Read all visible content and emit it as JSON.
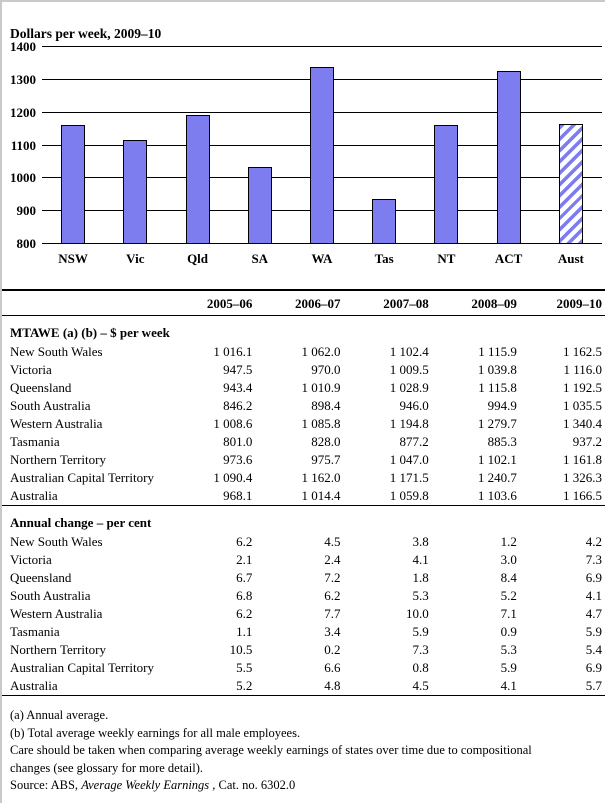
{
  "chart_data": {
    "type": "bar",
    "title": "Dollars per week, 2009–10",
    "categories": [
      "NSW",
      "Vic",
      "Qld",
      "SA",
      "WA",
      "Tas",
      "NT",
      "ACT",
      "Aust"
    ],
    "values": [
      1162.5,
      1116.0,
      1192.5,
      1035.5,
      1340.4,
      937.2,
      1161.8,
      1326.3,
      1166.5
    ],
    "xlabel": "",
    "ylabel": "Dollars per week",
    "ylim": [
      800,
      1400
    ],
    "ytick_step": 100,
    "grid": true,
    "legend": "none",
    "bar_color": "#7d7df0",
    "bar_border_color": "#000000",
    "hatched_category": "Aust",
    "hatch_style": "diagonal-forward-stripes-on-white"
  },
  "table": {
    "columns": [
      "2005–06",
      "2006–07",
      "2007–08",
      "2008–09",
      "2009–10"
    ],
    "sections": [
      {
        "header": "MTAWE (a) (b) – $ per week",
        "rows": [
          {
            "label": "New South Wales",
            "values": [
              "1 016.1",
              "1 062.0",
              "1 102.4",
              "1 115.9",
              "1 162.5"
            ]
          },
          {
            "label": "Victoria",
            "values": [
              "947.5",
              "970.0",
              "1 009.5",
              "1 039.8",
              "1 116.0"
            ]
          },
          {
            "label": "Queensland",
            "values": [
              "943.4",
              "1 010.9",
              "1 028.9",
              "1 115.8",
              "1 192.5"
            ]
          },
          {
            "label": "South Australia",
            "values": [
              "846.2",
              "898.4",
              "946.0",
              "994.9",
              "1 035.5"
            ]
          },
          {
            "label": "Western Australia",
            "values": [
              "1 008.6",
              "1 085.8",
              "1 194.8",
              "1 279.7",
              "1 340.4"
            ]
          },
          {
            "label": "Tasmania",
            "values": [
              "801.0",
              "828.0",
              "877.2",
              "885.3",
              "937.2"
            ]
          },
          {
            "label": "Northern Territory",
            "values": [
              "973.6",
              "975.7",
              "1 047.0",
              "1 102.1",
              "1 161.8"
            ]
          },
          {
            "label": "Australian Capital Territory",
            "values": [
              "1 090.4",
              "1 162.0",
              "1 171.5",
              "1 240.7",
              "1 326.3"
            ]
          },
          {
            "label": "Australia",
            "values": [
              "968.1",
              "1 014.4",
              "1 059.8",
              "1 103.6",
              "1 166.5"
            ]
          }
        ]
      },
      {
        "header": "Annual change – per cent",
        "rows": [
          {
            "label": "New South Wales",
            "values": [
              "6.2",
              "4.5",
              "3.8",
              "1.2",
              "4.2"
            ]
          },
          {
            "label": "Victoria",
            "values": [
              "2.1",
              "2.4",
              "4.1",
              "3.0",
              "7.3"
            ]
          },
          {
            "label": "Queensland",
            "values": [
              "6.7",
              "7.2",
              "1.8",
              "8.4",
              "6.9"
            ]
          },
          {
            "label": "South Australia",
            "values": [
              "6.8",
              "6.2",
              "5.3",
              "5.2",
              "4.1"
            ]
          },
          {
            "label": "Western Australia",
            "values": [
              "6.2",
              "7.7",
              "10.0",
              "7.1",
              "4.7"
            ]
          },
          {
            "label": "Tasmania",
            "values": [
              "1.1",
              "3.4",
              "5.9",
              "0.9",
              "5.9"
            ]
          },
          {
            "label": "Northern Territory",
            "values": [
              "10.5",
              "0.2",
              "7.3",
              "5.3",
              "5.4"
            ]
          },
          {
            "label": "Australian Capital Territory",
            "values": [
              "5.5",
              "6.6",
              "0.8",
              "5.9",
              "6.9"
            ]
          },
          {
            "label": "Australia",
            "values": [
              "5.2",
              "4.8",
              "4.5",
              "4.1",
              "5.7"
            ]
          }
        ]
      }
    ]
  },
  "footnotes": {
    "lines": [
      "(a) Annual average.",
      "(b) Total average weekly earnings for all male employees.",
      "Care should be taken when comparing average weekly earnings of states over time due to compositional",
      "changes (see glossary for more detail)."
    ],
    "source_prefix": "Source: ABS, ",
    "source_italic": "Average Weekly Earnings",
    "source_suffix": " , Cat. no. 6302.0"
  }
}
